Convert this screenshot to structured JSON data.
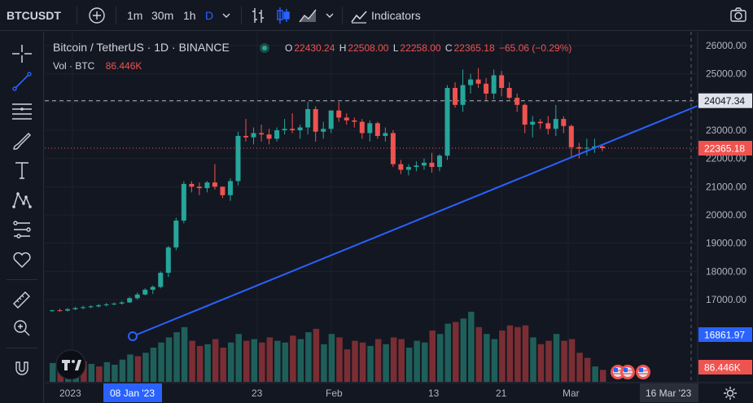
{
  "header": {
    "symbol": "BTCUSDT",
    "intervals": [
      "1m",
      "30m",
      "1h",
      "D"
    ],
    "active_interval": "D",
    "indicators_label": "Indicators"
  },
  "legend": {
    "title": "Bitcoin / TetherUS · 1D · BINANCE",
    "o_label": "O",
    "o_value": "22430.24",
    "h_label": "H",
    "h_value": "22508.00",
    "l_label": "L",
    "l_value": "22258.00",
    "c_label": "C",
    "c_value": "22365.18",
    "change": "−65.06 (−0.29%)",
    "vol_label": "Vol · BTC",
    "vol_value": "86.446K"
  },
  "price_axis": {
    "ticks": [
      "26000.00",
      "25000.00",
      "24000.00",
      "23000.00",
      "22000.00",
      "21000.00",
      "20000.00",
      "19000.00",
      "18000.00",
      "17000.00"
    ],
    "horizontal_line_label": "24047.34",
    "last_price_label": "22365.18",
    "trend_start_label": "16861.97",
    "volume_label": "86.446K"
  },
  "time_axis": {
    "labels": [
      "2023",
      "23",
      "Feb",
      "13",
      "21",
      "Mar"
    ],
    "highlight_start": "08 Jan '23",
    "highlight_end": "16 Mar '23"
  },
  "colors": {
    "up": "#26a69a",
    "down": "#ef5350",
    "accent": "#2962ff",
    "background": "#131722"
  },
  "chart_data": {
    "type": "candlestick",
    "symbol": "Bitcoin / TetherUS",
    "ylim": [
      16000,
      26500
    ],
    "horizontal_line": 24047.34,
    "last_price": 22365.18,
    "trendline": [
      {
        "x": "08 Jan '23",
        "y": 16861.97
      },
      {
        "x": "16 Mar '23",
        "y": 24047.34
      }
    ],
    "candles": [
      [
        16600,
        16640,
        16560,
        16620
      ],
      [
        16620,
        16680,
        16580,
        16610
      ],
      [
        16610,
        16700,
        16580,
        16660
      ],
      [
        16660,
        16750,
        16630,
        16700
      ],
      [
        16700,
        16780,
        16660,
        16730
      ],
      [
        16730,
        16800,
        16700,
        16760
      ],
      [
        16760,
        16850,
        16720,
        16800
      ],
      [
        16800,
        16880,
        16760,
        16830
      ],
      [
        16830,
        16900,
        16800,
        16860
      ],
      [
        16860,
        16950,
        16820,
        16900
      ],
      [
        16900,
        17100,
        16880,
        17050
      ],
      [
        17050,
        17250,
        17000,
        17180
      ],
      [
        17180,
        17400,
        17150,
        17350
      ],
      [
        17350,
        17500,
        17200,
        17450
      ],
      [
        17450,
        18000,
        17400,
        17950
      ],
      [
        17950,
        18900,
        17800,
        18850
      ],
      [
        18850,
        19900,
        18750,
        19800
      ],
      [
        19800,
        21200,
        19700,
        21100
      ],
      [
        21100,
        21200,
        20800,
        21000
      ],
      [
        21000,
        21150,
        20700,
        20950
      ],
      [
        20950,
        21200,
        20800,
        21150
      ],
      [
        21150,
        21800,
        20900,
        21000
      ],
      [
        21000,
        21000,
        20600,
        20700
      ],
      [
        20700,
        21300,
        20500,
        21200
      ],
      [
        21200,
        22950,
        21050,
        22800
      ],
      [
        22800,
        23400,
        22600,
        22750
      ],
      [
        22750,
        23100,
        22500,
        22900
      ],
      [
        22900,
        23200,
        22600,
        22850
      ],
      [
        22850,
        23050,
        22500,
        22700
      ],
      [
        22700,
        23100,
        22600,
        23000
      ],
      [
        23000,
        23400,
        22850,
        23050
      ],
      [
        23050,
        23600,
        22900,
        23000
      ],
      [
        23000,
        23200,
        22700,
        23100
      ],
      [
        23100,
        24000,
        22850,
        23750
      ],
      [
        23750,
        23850,
        22600,
        22950
      ],
      [
        22950,
        23300,
        22700,
        23050
      ],
      [
        23050,
        23700,
        22900,
        23700
      ],
      [
        23700,
        24000,
        23300,
        23450
      ],
      [
        23450,
        23600,
        23200,
        23350
      ],
      [
        23350,
        23450,
        23100,
        23300
      ],
      [
        23300,
        23400,
        22700,
        22900
      ],
      [
        22900,
        23350,
        22600,
        23250
      ],
      [
        23250,
        23300,
        22700,
        22800
      ],
      [
        22800,
        23100,
        22600,
        22900
      ],
      [
        22900,
        23000,
        21700,
        21800
      ],
      [
        21800,
        21950,
        21450,
        21600
      ],
      [
        21600,
        21800,
        21400,
        21700
      ],
      [
        21700,
        21900,
        21550,
        21750
      ],
      [
        21750,
        22000,
        21600,
        21850
      ],
      [
        21850,
        22200,
        21500,
        21700
      ],
      [
        21700,
        22150,
        21550,
        22100
      ],
      [
        22100,
        24600,
        21950,
        24500
      ],
      [
        24500,
        24700,
        23800,
        23900
      ],
      [
        23900,
        25150,
        23650,
        24600
      ],
      [
        24600,
        25000,
        24300,
        24800
      ],
      [
        24800,
        25200,
        24500,
        24650
      ],
      [
        24650,
        24850,
        24050,
        24300
      ],
      [
        24300,
        25150,
        24100,
        24950
      ],
      [
        24950,
        25100,
        24200,
        24500
      ],
      [
        24500,
        24700,
        24100,
        24150
      ],
      [
        24150,
        24300,
        23650,
        23900
      ],
      [
        23900,
        23950,
        22900,
        23200
      ],
      [
        23200,
        23500,
        22750,
        23300
      ],
      [
        23300,
        23400,
        23050,
        23250
      ],
      [
        23250,
        23500,
        22850,
        23050
      ],
      [
        23050,
        23900,
        22800,
        23400
      ],
      [
        23400,
        23500,
        22900,
        23150
      ],
      [
        23150,
        23200,
        22050,
        22400
      ],
      [
        22400,
        22550,
        22000,
        22350
      ],
      [
        22350,
        22700,
        22100,
        22380
      ],
      [
        22380,
        22700,
        22200,
        22430
      ],
      [
        22430,
        22508,
        22258,
        22365
      ]
    ],
    "volumes": [
      [
        110,
        0
      ],
      [
        95,
        1
      ],
      [
        80,
        0
      ],
      [
        100,
        0
      ],
      [
        120,
        1
      ],
      [
        105,
        0
      ],
      [
        90,
        1
      ],
      [
        115,
        0
      ],
      [
        100,
        0
      ],
      [
        130,
        0
      ],
      [
        160,
        0
      ],
      [
        150,
        1
      ],
      [
        170,
        0
      ],
      [
        200,
        0
      ],
      [
        230,
        0
      ],
      [
        260,
        0
      ],
      [
        290,
        0
      ],
      [
        320,
        0
      ],
      [
        240,
        1
      ],
      [
        210,
        1
      ],
      [
        220,
        0
      ],
      [
        250,
        1
      ],
      [
        200,
        1
      ],
      [
        230,
        0
      ],
      [
        280,
        0
      ],
      [
        240,
        1
      ],
      [
        250,
        0
      ],
      [
        230,
        1
      ],
      [
        260,
        1
      ],
      [
        240,
        0
      ],
      [
        230,
        0
      ],
      [
        270,
        1
      ],
      [
        250,
        0
      ],
      [
        290,
        0
      ],
      [
        310,
        1
      ],
      [
        220,
        0
      ],
      [
        280,
        0
      ],
      [
        260,
        1
      ],
      [
        190,
        1
      ],
      [
        240,
        1
      ],
      [
        230,
        1
      ],
      [
        210,
        0
      ],
      [
        250,
        1
      ],
      [
        220,
        0
      ],
      [
        260,
        1
      ],
      [
        250,
        1
      ],
      [
        200,
        0
      ],
      [
        240,
        0
      ],
      [
        230,
        0
      ],
      [
        300,
        1
      ],
      [
        280,
        0
      ],
      [
        340,
        0
      ],
      [
        350,
        1
      ],
      [
        370,
        0
      ],
      [
        410,
        0
      ],
      [
        320,
        1
      ],
      [
        280,
        0
      ],
      [
        250,
        0
      ],
      [
        300,
        1
      ],
      [
        330,
        1
      ],
      [
        320,
        1
      ],
      [
        330,
        1
      ],
      [
        260,
        0
      ],
      [
        220,
        1
      ],
      [
        240,
        1
      ],
      [
        280,
        0
      ],
      [
        240,
        1
      ],
      [
        250,
        1
      ],
      [
        170,
        1
      ],
      [
        140,
        1
      ],
      [
        90,
        0
      ],
      [
        70,
        1
      ]
    ]
  }
}
